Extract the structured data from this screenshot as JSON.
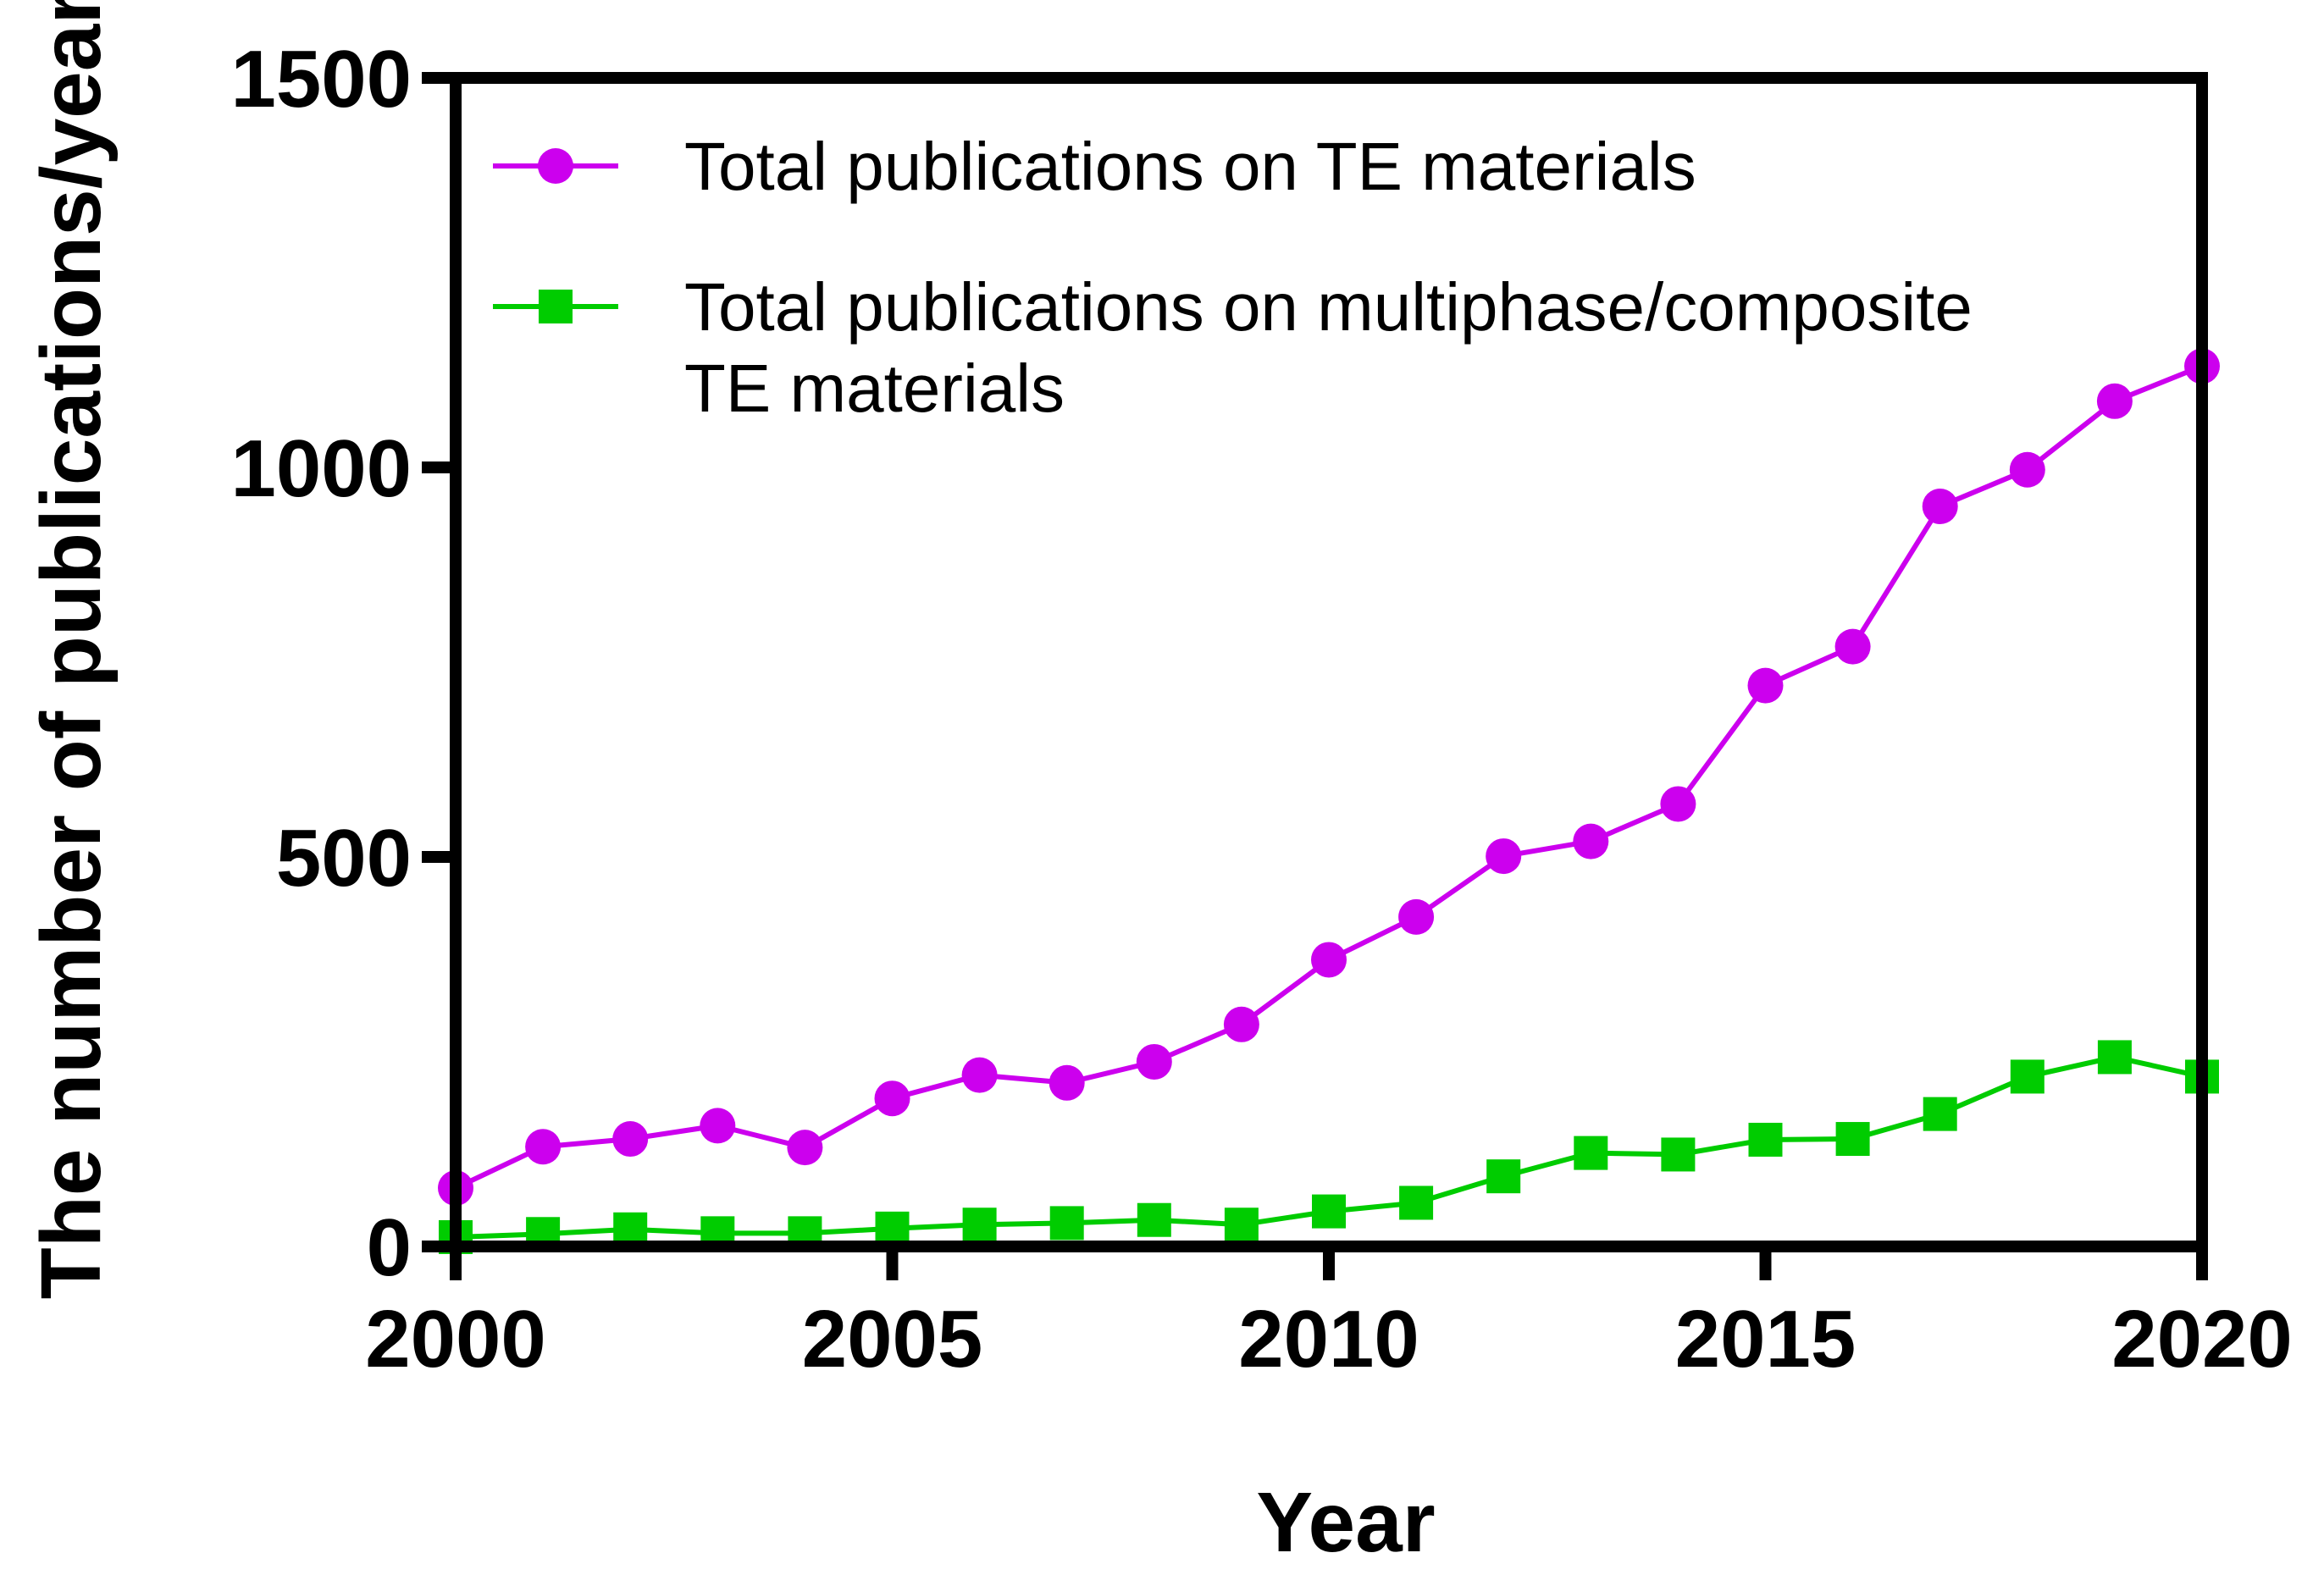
{
  "chart_data": {
    "type": "line",
    "title": "",
    "xlabel": "Year",
    "ylabel": "The  number of publications/year",
    "xlim": [
      2000,
      2020
    ],
    "ylim": [
      0,
      1500
    ],
    "xticks": [
      2000,
      2005,
      2010,
      2015,
      2020
    ],
    "yticks": [
      0,
      500,
      1000,
      1500
    ],
    "xtick_labels": [
      "2000",
      "2005",
      "2010",
      "2015",
      "2020"
    ],
    "ytick_labels": [
      "0",
      "500",
      "1000",
      "1500"
    ],
    "grid": false,
    "legend_position": "top-left",
    "x": [
      2000,
      2001,
      2002,
      2003,
      2004,
      2005,
      2006,
      2007,
      2008,
      2009,
      2010,
      2011,
      2012,
      2013,
      2014,
      2015,
      2016,
      2017,
      2018,
      2019,
      2020
    ],
    "series": [
      {
        "name": "Total publications on TE materials",
        "legend_lines": [
          "Total publications on TE materials"
        ],
        "color": "#cc00ee",
        "marker": "circle",
        "values": [
          75,
          128,
          138,
          155,
          127,
          190,
          220,
          210,
          237,
          285,
          368,
          423,
          501,
          520,
          568,
          720,
          770,
          950,
          997,
          1085,
          1130
        ]
      },
      {
        "name": "Total publications on multiphase/composite TE materials",
        "legend_lines": [
          "Total publications on multiphase/composite",
          "TE materials"
        ],
        "color": "#00cc00",
        "marker": "square",
        "values": [
          12,
          16,
          22,
          17,
          17,
          23,
          28,
          30,
          34,
          28,
          45,
          56,
          90,
          120,
          118,
          137,
          138,
          170,
          218,
          243,
          218
        ]
      }
    ]
  }
}
